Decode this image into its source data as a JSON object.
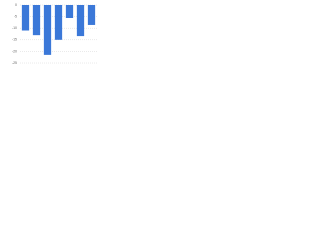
{
  "chart_data": {
    "type": "bar",
    "categories": [
      null,
      null,
      null,
      null,
      null,
      null,
      null
    ],
    "values": [
      -11,
      -13,
      -21.5,
      -15,
      -5.6,
      -13.4,
      -8.6
    ],
    "color": "#3b78d8",
    "ylim": [
      -25,
      0
    ],
    "yticks": [
      0,
      -5,
      -10,
      -15,
      -20,
      -25
    ],
    "grid": true
  }
}
